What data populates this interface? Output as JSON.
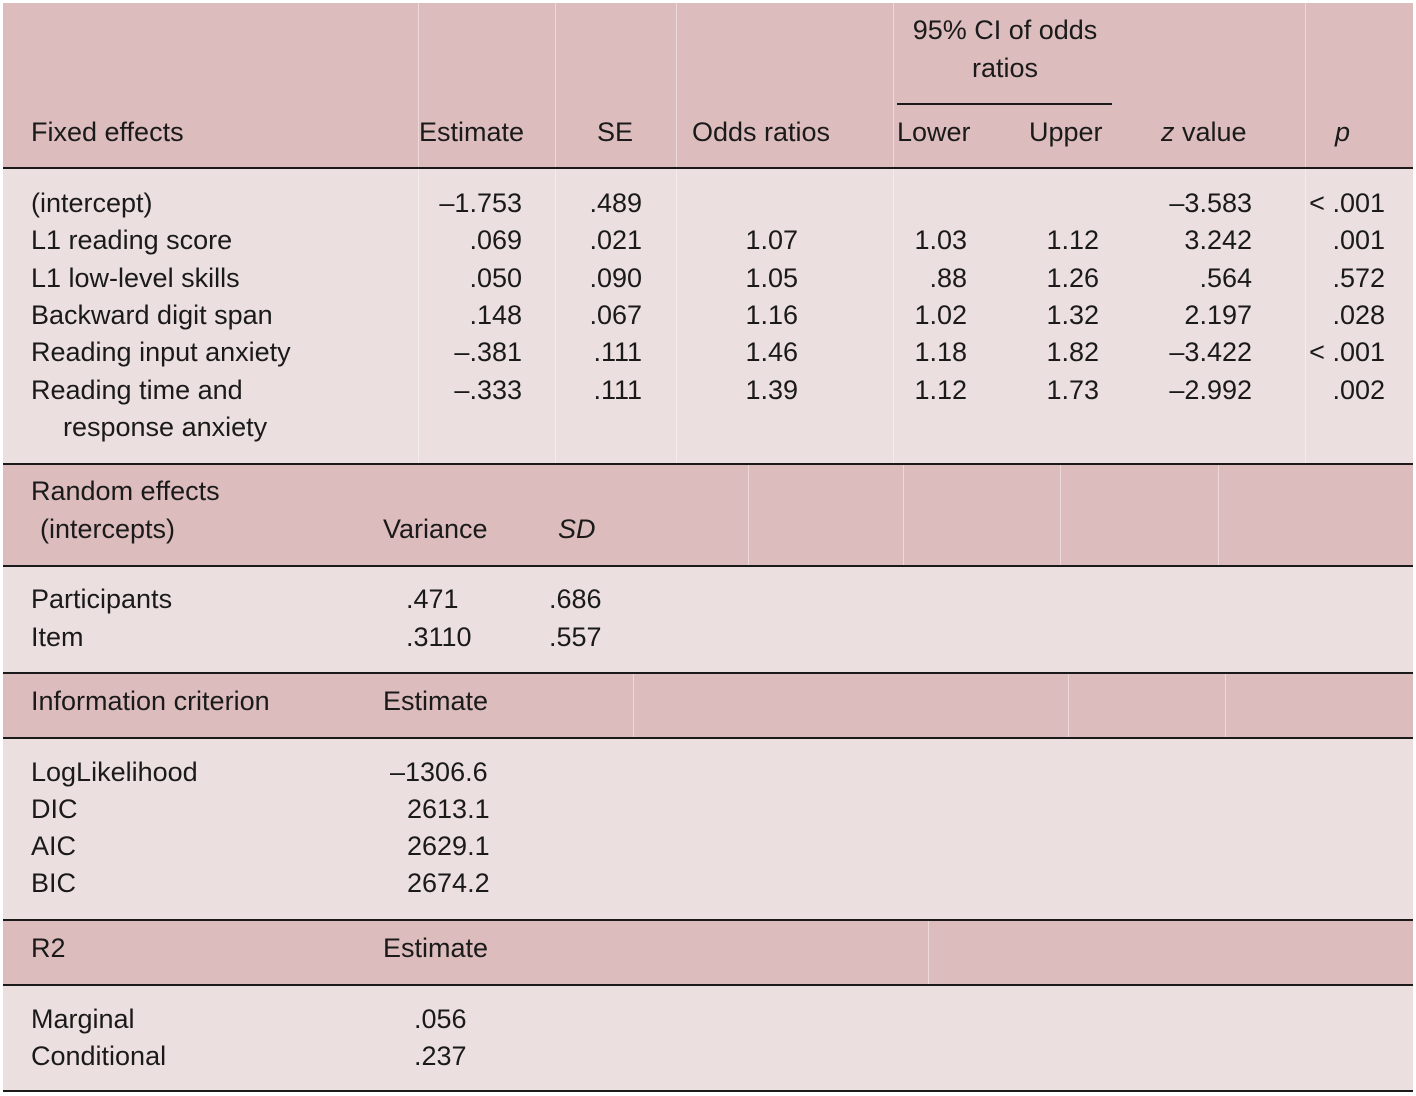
{
  "fixed": {
    "ci_title_line1": "95% CI of odds",
    "ci_title_line2": "ratios",
    "headers": {
      "effects": "Fixed effects",
      "estimate": "Estimate",
      "se": "SE",
      "odds": "Odds ratios",
      "lower": "Lower",
      "upper": "Upper",
      "z_italic": "z",
      "z_rest": " value",
      "p": "p"
    },
    "rows": [
      {
        "label": "(intercept)",
        "estimate": "–1.753",
        "se": ".489",
        "odds": "",
        "lower": "",
        "upper": "",
        "z": "–3.583",
        "p": "< .001"
      },
      {
        "label": "L1 reading score",
        "estimate": ".069",
        "se": ".021",
        "odds": "1.07",
        "lower": "1.03",
        "upper": "1.12",
        "z": "3.242",
        "p": ".001"
      },
      {
        "label": "L1 low-level skills",
        "estimate": ".050",
        "se": ".090",
        "odds": "1.05",
        "lower": ".88",
        "upper": "1.26",
        "z": ".564",
        "p": ".572"
      },
      {
        "label": "Backward digit span",
        "estimate": ".148",
        "se": ".067",
        "odds": "1.16",
        "lower": "1.02",
        "upper": "1.32",
        "z": "2.197",
        "p": ".028"
      },
      {
        "label": "Reading input anxiety",
        "estimate": "–.381",
        "se": ".111",
        "odds": "1.46",
        "lower": "1.18",
        "upper": "1.82",
        "z": "–3.422",
        "p": "< .001"
      },
      {
        "label": "Reading time and",
        "label2": "response anxiety",
        "estimate": "–.333",
        "se": ".111",
        "odds": "1.39",
        "lower": "1.12",
        "upper": "1.73",
        "z": "–2.992",
        "p": ".002"
      }
    ]
  },
  "random": {
    "header_line1": "Random effects",
    "header_line2": "(intercepts)",
    "variance_label": "Variance",
    "sd_label": "SD",
    "rows": [
      {
        "label": "Participants",
        "variance": ".471",
        "sd": ".686"
      },
      {
        "label": "Item",
        "variance": ".3110",
        "sd": ".557"
      }
    ]
  },
  "info": {
    "header": "Information criterion",
    "estimate_label": "Estimate",
    "rows": [
      {
        "label": "LogLikelihood",
        "value": "–1306.6"
      },
      {
        "label": "DIC",
        "value": "2613.1"
      },
      {
        "label": "AIC",
        "value": "2629.1"
      },
      {
        "label": "BIC",
        "value": "2674.2"
      }
    ]
  },
  "r2": {
    "header": "R2",
    "estimate_label": "Estimate",
    "rows": [
      {
        "label": "Marginal",
        "value": ".056"
      },
      {
        "label": "Conditional",
        "value": ".237"
      }
    ]
  },
  "colors": {
    "header_band": "#dcbcbc",
    "body_band": "#ecdfdf",
    "rule": "#1a1a1a"
  }
}
